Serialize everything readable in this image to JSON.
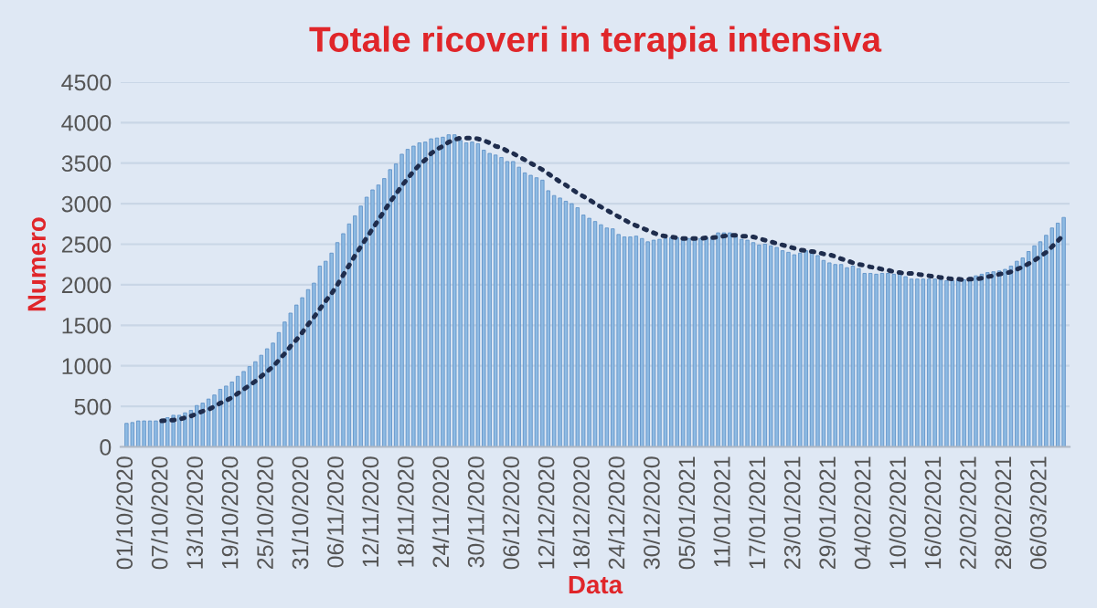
{
  "chart_data": {
    "type": "bar",
    "title": "Totale ricoveri in terapia intensiva",
    "xlabel": "Data",
    "ylabel": "Numero",
    "categories": [
      "01/10/2020",
      null,
      null,
      null,
      null,
      null,
      "07/10/2020",
      null,
      null,
      null,
      null,
      null,
      "13/10/2020",
      null,
      null,
      null,
      null,
      null,
      "19/10/2020",
      null,
      null,
      null,
      null,
      null,
      "25/10/2020",
      null,
      null,
      null,
      null,
      null,
      "31/10/2020",
      null,
      null,
      null,
      null,
      null,
      "06/11/2020",
      null,
      null,
      null,
      null,
      null,
      "12/11/2020",
      null,
      null,
      null,
      null,
      null,
      "18/11/2020",
      null,
      null,
      null,
      null,
      null,
      "24/11/2020",
      null,
      null,
      null,
      null,
      null,
      "30/11/2020",
      null,
      null,
      null,
      null,
      null,
      "06/12/2020",
      null,
      null,
      null,
      null,
      null,
      "12/12/2020",
      null,
      null,
      null,
      null,
      null,
      "18/12/2020",
      null,
      null,
      null,
      null,
      null,
      "24/12/2020",
      null,
      null,
      null,
      null,
      null,
      "30/12/2020",
      null,
      null,
      null,
      null,
      null,
      "05/01/2021",
      null,
      null,
      null,
      null,
      null,
      "11/01/2021",
      null,
      null,
      null,
      null,
      null,
      "17/01/2021",
      null,
      null,
      null,
      null,
      null,
      "23/01/2021",
      null,
      null,
      null,
      null,
      null,
      "29/01/2021",
      null,
      null,
      null,
      null,
      null,
      "04/02/2021",
      null,
      null,
      null,
      null,
      null,
      "10/02/2021",
      null,
      null,
      null,
      null,
      null,
      "16/02/2021",
      null,
      null,
      null,
      null,
      null,
      "22/02/2021",
      null,
      null,
      null,
      null,
      null,
      "28/02/2021",
      null,
      null,
      null,
      null,
      null,
      "06/03/2021",
      null,
      null,
      null,
      null
    ],
    "series": [
      {
        "color": "#8fbbe3",
        "values": [
          290,
          300,
          320,
          320,
          320,
          320,
          340,
          360,
          390,
          390,
          420,
          450,
          510,
          540,
          590,
          640,
          710,
          750,
          800,
          870,
          930,
          990,
          1050,
          1130,
          1210,
          1280,
          1410,
          1540,
          1650,
          1750,
          1840,
          1940,
          2020,
          2230,
          2290,
          2390,
          2520,
          2630,
          2750,
          2850,
          2970,
          3080,
          3170,
          3230,
          3310,
          3420,
          3490,
          3610,
          3670,
          3710,
          3750,
          3760,
          3800,
          3810,
          3820,
          3850,
          3850,
          3780,
          3750,
          3760,
          3740,
          3660,
          3620,
          3600,
          3570,
          3520,
          3520,
          3450,
          3380,
          3350,
          3320,
          3290,
          3160,
          3100,
          3070,
          3030,
          3000,
          2950,
          2860,
          2820,
          2780,
          2740,
          2700,
          2690,
          2620,
          2590,
          2590,
          2600,
          2570,
          2530,
          2550,
          2560,
          2570,
          2580,
          2580,
          2570,
          2570,
          2590,
          2570,
          2580,
          2590,
          2640,
          2640,
          2640,
          2590,
          2560,
          2550,
          2520,
          2490,
          2500,
          2480,
          2460,
          2420,
          2400,
          2370,
          2390,
          2420,
          2390,
          2360,
          2300,
          2270,
          2250,
          2250,
          2210,
          2230,
          2200,
          2140,
          2140,
          2130,
          2140,
          2140,
          2130,
          2130,
          2100,
          2070,
          2070,
          2070,
          2070,
          2070,
          2060,
          2050,
          2050,
          2060,
          2060,
          2090,
          2110,
          2130,
          2150,
          2160,
          2170,
          2190,
          2230,
          2290,
          2330,
          2410,
          2480,
          2530,
          2610,
          2700,
          2760,
          2830
        ]
      },
      {
        "type": "line",
        "color": "#1f2d4d",
        "line_style": "dotted",
        "values": [
          null,
          null,
          null,
          null,
          null,
          null,
          320,
          330,
          330,
          340,
          360,
          380,
          410,
          440,
          460,
          500,
          540,
          570,
          610,
          660,
          710,
          760,
          810,
          870,
          930,
          990,
          1070,
          1150,
          1240,
          1320,
          1410,
          1510,
          1600,
          1700,
          1800,
          1890,
          2000,
          2120,
          2240,
          2360,
          2470,
          2580,
          2690,
          2800,
          2910,
          3020,
          3120,
          3220,
          3310,
          3400,
          3480,
          3540,
          3620,
          3670,
          3710,
          3760,
          3790,
          3810,
          3810,
          3810,
          3800,
          3780,
          3750,
          3710,
          3690,
          3650,
          3620,
          3580,
          3540,
          3500,
          3460,
          3420,
          3370,
          3320,
          3270,
          3230,
          3180,
          3130,
          3090,
          3050,
          3000,
          2960,
          2920,
          2880,
          2840,
          2800,
          2760,
          2730,
          2700,
          2670,
          2640,
          2610,
          2600,
          2590,
          2580,
          2570,
          2570,
          2570,
          2570,
          2580,
          2580,
          2590,
          2600,
          2610,
          2610,
          2600,
          2600,
          2590,
          2570,
          2550,
          2530,
          2510,
          2490,
          2470,
          2450,
          2430,
          2420,
          2410,
          2400,
          2380,
          2370,
          2350,
          2320,
          2300,
          2270,
          2250,
          2240,
          2220,
          2210,
          2190,
          2180,
          2160,
          2150,
          2140,
          2140,
          2130,
          2120,
          2110,
          2100,
          2090,
          2080,
          2070,
          2070,
          2060,
          2070,
          2070,
          2080,
          2100,
          2110,
          2130,
          2140,
          2160,
          2190,
          2220,
          2260,
          2300,
          2350,
          2400,
          2470,
          2540,
          2620
        ]
      }
    ],
    "ylim": [
      0,
      4500
    ],
    "yticks": [
      0,
      500,
      1000,
      1500,
      2000,
      2500,
      3000,
      3500,
      4000,
      4500
    ],
    "grid": "y"
  }
}
